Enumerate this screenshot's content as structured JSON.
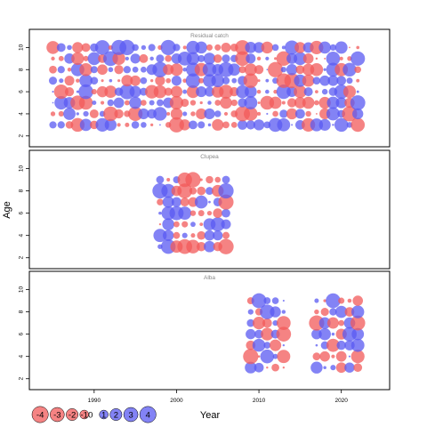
{
  "chart_data": {
    "type": "scatter",
    "ylabel": "Age",
    "xlabel": "Year",
    "x_ticks": [
      1990,
      2000,
      2010,
      2020
    ],
    "y_ticks": [
      2,
      4,
      6,
      8,
      10
    ],
    "xlim": [
      1983,
      2025
    ],
    "colors": {
      "negative": "#f25a5a",
      "positive": "#5a5af2"
    },
    "panels": [
      {
        "title": "Residual catch",
        "years": [
          1985,
          2022
        ],
        "ages": [
          3,
          10
        ],
        "ylim": [
          1.5,
          11
        ]
      },
      {
        "title": "Clupea",
        "years": [
          1998,
          2006
        ],
        "ages": [
          3,
          9
        ],
        "ylim": [
          1.5,
          11
        ]
      },
      {
        "title": "Alba",
        "years": [
          2009,
          2022
        ],
        "skip_years": [
          2014,
          2015,
          2016
        ],
        "ages": [
          3,
          9
        ],
        "ylim": [
          1.5,
          11
        ]
      }
    ],
    "legend": {
      "values": [
        -4,
        -3,
        -2,
        -1,
        0,
        1,
        2,
        3,
        4
      ],
      "labels": [
        "-4",
        "-3",
        "-2",
        "-1",
        "0",
        "1",
        "2",
        "3",
        "4"
      ],
      "title": "Year"
    }
  }
}
